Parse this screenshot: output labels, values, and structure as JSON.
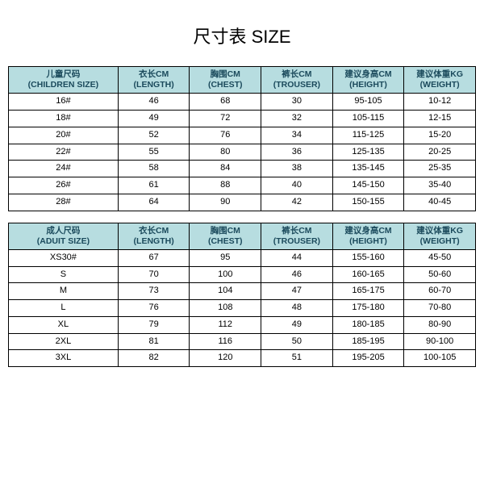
{
  "title": "尺寸表 SIZE",
  "tables": {
    "children": {
      "header_bg": "#b7dde0",
      "columns": [
        {
          "l1": "儿童尺码",
          "l2": "(CHILDREN SIZE)"
        },
        {
          "l1": "衣长CM",
          "l2": "(LENGTH)"
        },
        {
          "l1": "胸围CM",
          "l2": "(CHEST)"
        },
        {
          "l1": "裤长CM",
          "l2": "(TROUSER)"
        },
        {
          "l1": "建议身高CM",
          "l2": "(HEIGHT)"
        },
        {
          "l1": "建议体重KG",
          "l2": "(WEIGHT)"
        }
      ],
      "rows": [
        [
          "16#",
          "46",
          "68",
          "30",
          "95-105",
          "10-12"
        ],
        [
          "18#",
          "49",
          "72",
          "32",
          "105-115",
          "12-15"
        ],
        [
          "20#",
          "52",
          "76",
          "34",
          "115-125",
          "15-20"
        ],
        [
          "22#",
          "55",
          "80",
          "36",
          "125-135",
          "20-25"
        ],
        [
          "24#",
          "58",
          "84",
          "38",
          "135-145",
          "25-35"
        ],
        [
          "26#",
          "61",
          "88",
          "40",
          "145-150",
          "35-40"
        ],
        [
          "28#",
          "64",
          "90",
          "42",
          "150-155",
          "40-45"
        ]
      ]
    },
    "adult": {
      "header_bg": "#b7dde0",
      "columns": [
        {
          "l1": "成人尺码",
          "l2": "(ADUIT SIZE)"
        },
        {
          "l1": "衣长CM",
          "l2": "(LENGTH)"
        },
        {
          "l1": "胸围CM",
          "l2": "(CHEST)"
        },
        {
          "l1": "裤长CM",
          "l2": "(TROUSER)"
        },
        {
          "l1": "建议身高CM",
          "l2": "(HEIGHT)"
        },
        {
          "l1": "建议体重KG",
          "l2": "(WEIGHT)"
        }
      ],
      "rows": [
        [
          "XS30#",
          "67",
          "95",
          "44",
          "155-160",
          "45-50"
        ],
        [
          "S",
          "70",
          "100",
          "46",
          "160-165",
          "50-60"
        ],
        [
          "M",
          "73",
          "104",
          "47",
          "165-175",
          "60-70"
        ],
        [
          "L",
          "76",
          "108",
          "48",
          "175-180",
          "70-80"
        ],
        [
          "XL",
          "79",
          "112",
          "49",
          "180-185",
          "80-90"
        ],
        [
          "2XL",
          "81",
          "116",
          "50",
          "185-195",
          "90-100"
        ],
        [
          "3XL",
          "82",
          "120",
          "51",
          "195-205",
          "100-105"
        ]
      ]
    }
  }
}
